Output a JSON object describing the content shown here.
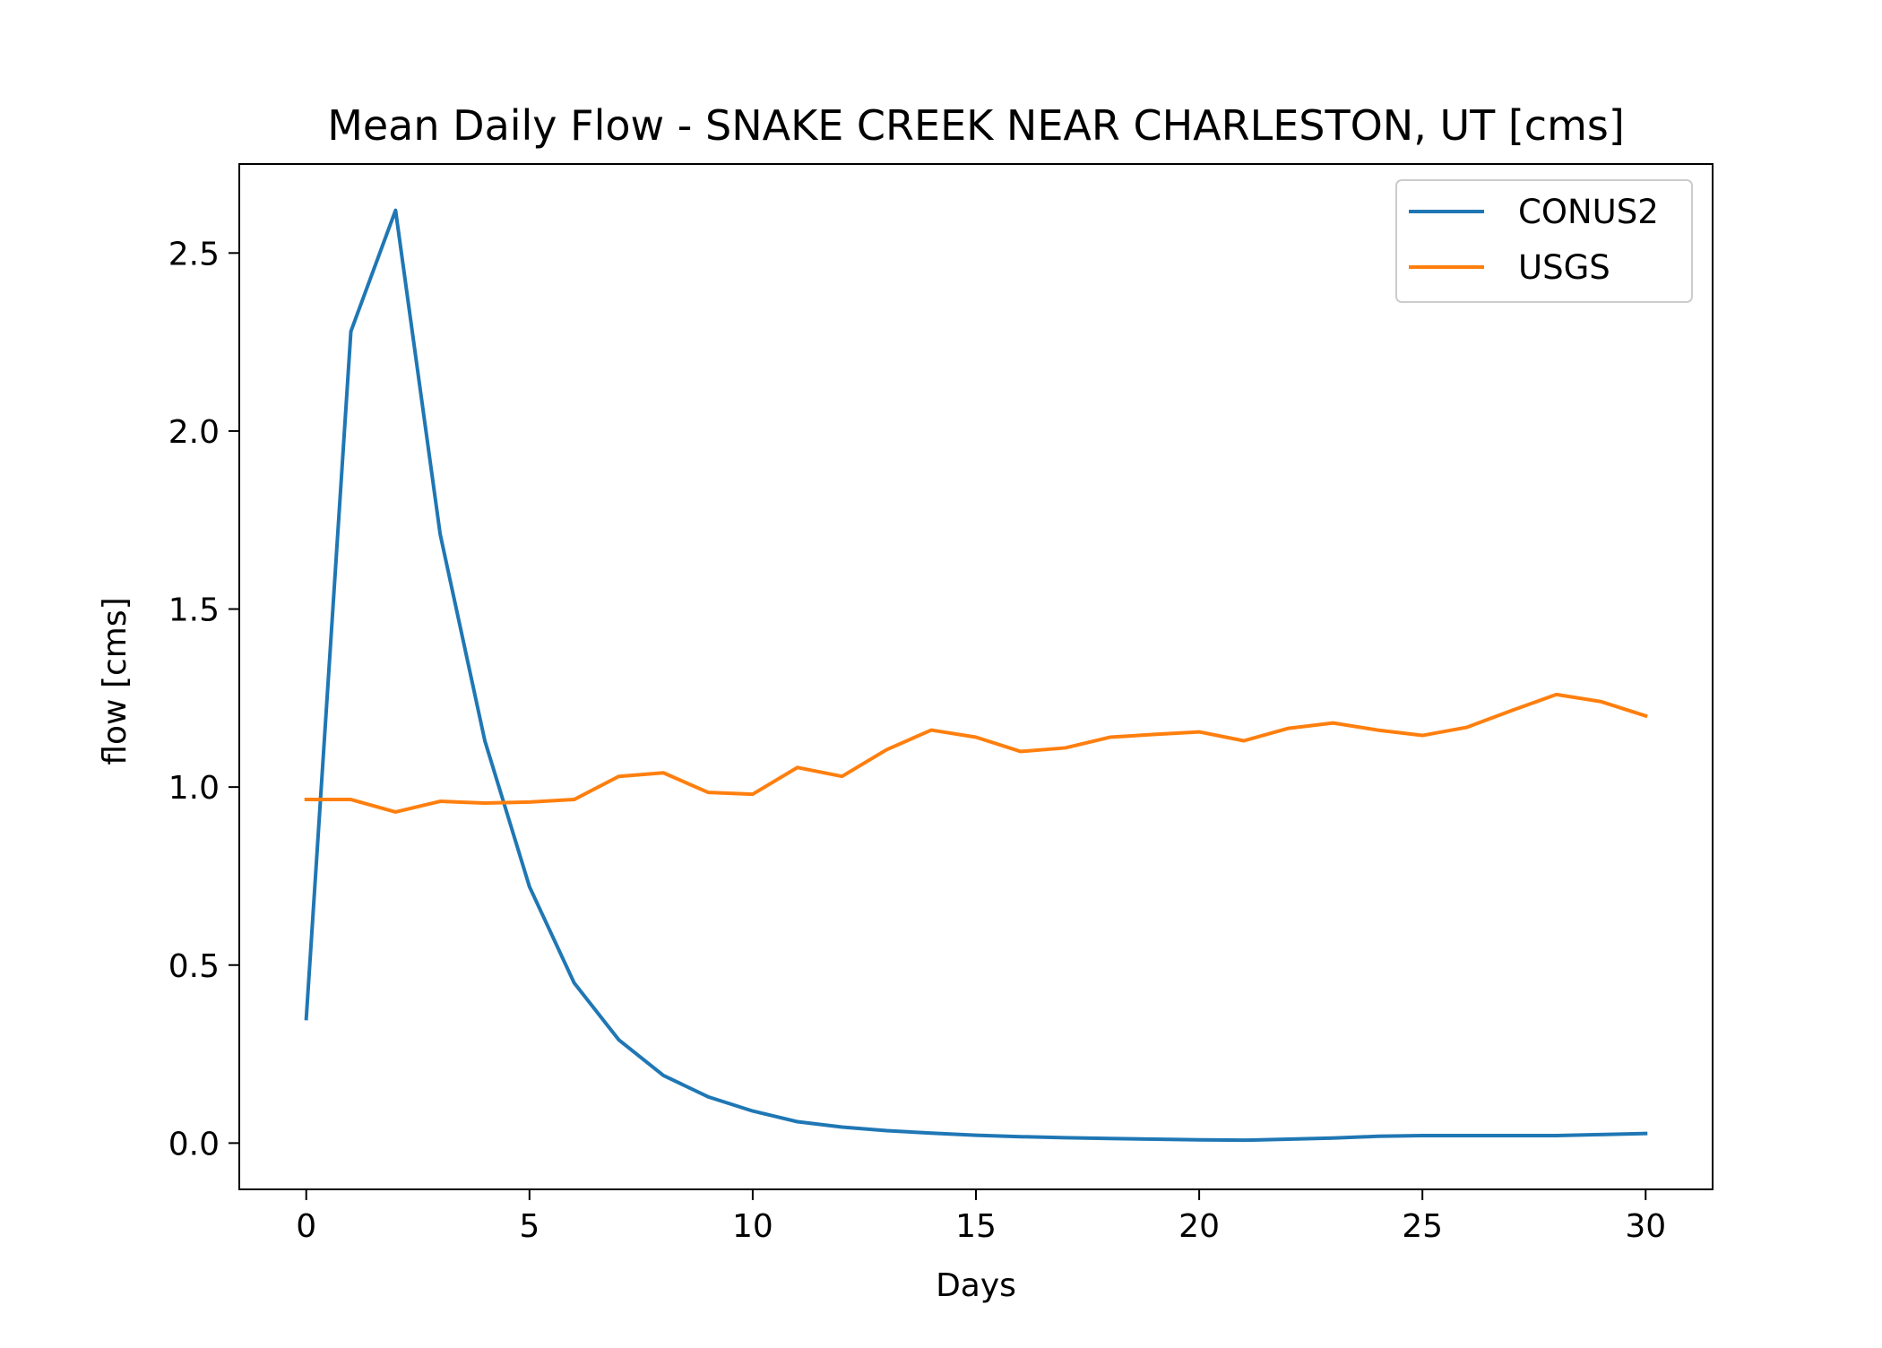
{
  "chart_data": {
    "type": "line",
    "title": "Mean Daily Flow - SNAKE CREEK NEAR CHARLESTON, UT [cms]",
    "xlabel": "Days",
    "ylabel": "flow [cms]",
    "xlim": [
      -1.5,
      31.5
    ],
    "ylim": [
      -0.13,
      2.75
    ],
    "xticks": [
      0,
      5,
      10,
      15,
      20,
      25,
      30
    ],
    "yticks": [
      0.0,
      0.5,
      1.0,
      1.5,
      2.0,
      2.5
    ],
    "xtick_labels": [
      "0",
      "5",
      "10",
      "15",
      "20",
      "25",
      "30"
    ],
    "ytick_labels": [
      "0.0",
      "0.5",
      "1.0",
      "1.5",
      "2.0",
      "2.5"
    ],
    "grid": false,
    "legend": "top-right",
    "x": [
      0,
      1,
      2,
      3,
      4,
      5,
      6,
      7,
      8,
      9,
      10,
      11,
      12,
      13,
      14,
      15,
      16,
      17,
      18,
      19,
      20,
      21,
      22,
      23,
      24,
      25,
      26,
      27,
      28,
      29,
      30
    ],
    "series": [
      {
        "name": "CONUS2",
        "color": "#1f77b4",
        "values": [
          0.35,
          2.28,
          2.62,
          1.71,
          1.13,
          0.72,
          0.45,
          0.29,
          0.19,
          0.13,
          0.09,
          0.06,
          0.045,
          0.035,
          0.028,
          0.022,
          0.018,
          0.015,
          0.013,
          0.011,
          0.009,
          0.008,
          0.011,
          0.014,
          0.019,
          0.021,
          0.021,
          0.021,
          0.021,
          0.024,
          0.027
        ]
      },
      {
        "name": "USGS",
        "color": "#ff7f0e",
        "values": [
          0.965,
          0.965,
          0.93,
          0.96,
          0.955,
          0.958,
          0.965,
          1.03,
          1.04,
          0.985,
          0.98,
          1.055,
          1.03,
          1.105,
          1.16,
          1.14,
          1.1,
          1.11,
          1.14,
          1.148,
          1.155,
          1.13,
          1.165,
          1.18,
          1.16,
          1.145,
          1.168,
          1.215,
          1.26,
          1.24,
          1.2
        ]
      }
    ]
  }
}
